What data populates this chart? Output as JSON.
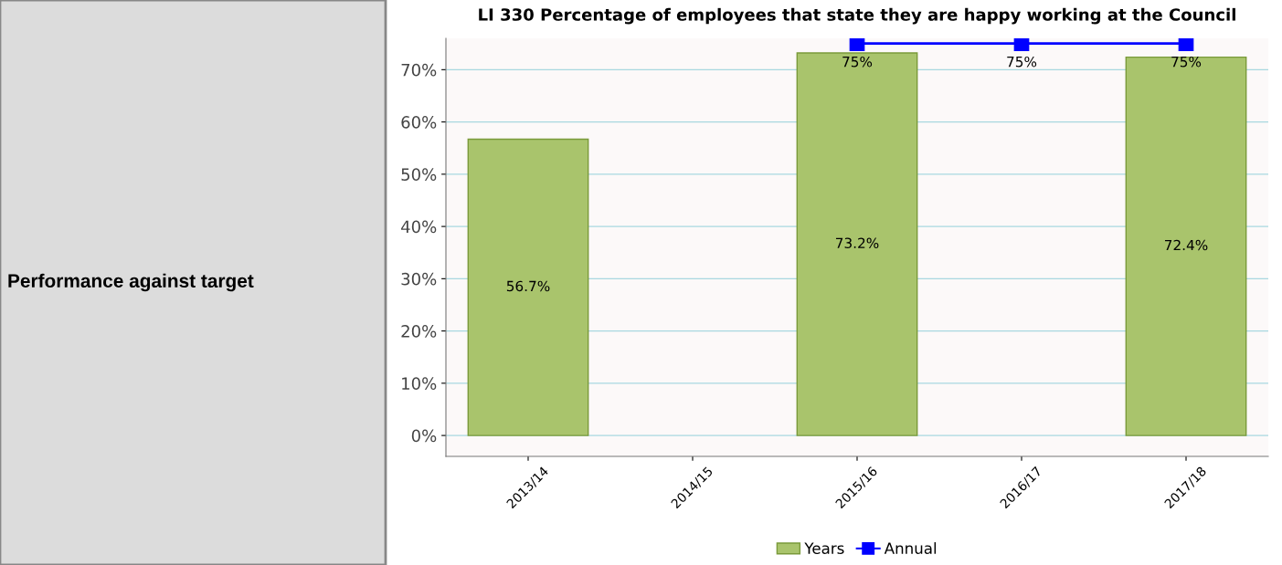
{
  "chart_data": {
    "type": "bar",
    "title": "LI 330 Percentage of employees that state they are happy working at the Council",
    "categories": [
      "2013/14",
      "2014/15",
      "2015/16",
      "2016/17",
      "2017/18"
    ],
    "series": [
      {
        "name": "Years",
        "color": "#a9c46c",
        "values": [
          56.7,
          null,
          73.2,
          null,
          72.4
        ],
        "value_labels": [
          "56.7%",
          null,
          "73.2%",
          null,
          "72.4%"
        ]
      },
      {
        "name": "Annual",
        "type": "line",
        "color": "#0000ff",
        "values": [
          null,
          null,
          75,
          75,
          75
        ],
        "value_labels": [
          null,
          null,
          "75%",
          "75%",
          "75%"
        ],
        "marker": "square"
      }
    ],
    "ylim": [
      -4,
      76
    ],
    "yticks": [
      {
        "value": 0,
        "label": "0%"
      },
      {
        "value": 10,
        "label": "10%"
      },
      {
        "value": 20,
        "label": "20%"
      },
      {
        "value": 30,
        "label": "30%"
      },
      {
        "value": 40,
        "label": "40%"
      },
      {
        "value": 50,
        "label": "50%"
      },
      {
        "value": 60,
        "label": "60%"
      },
      {
        "value": 70,
        "label": "70%"
      }
    ],
    "grid": "y",
    "legend": "bottom",
    "annotations": [
      "Performance against target"
    ]
  }
}
